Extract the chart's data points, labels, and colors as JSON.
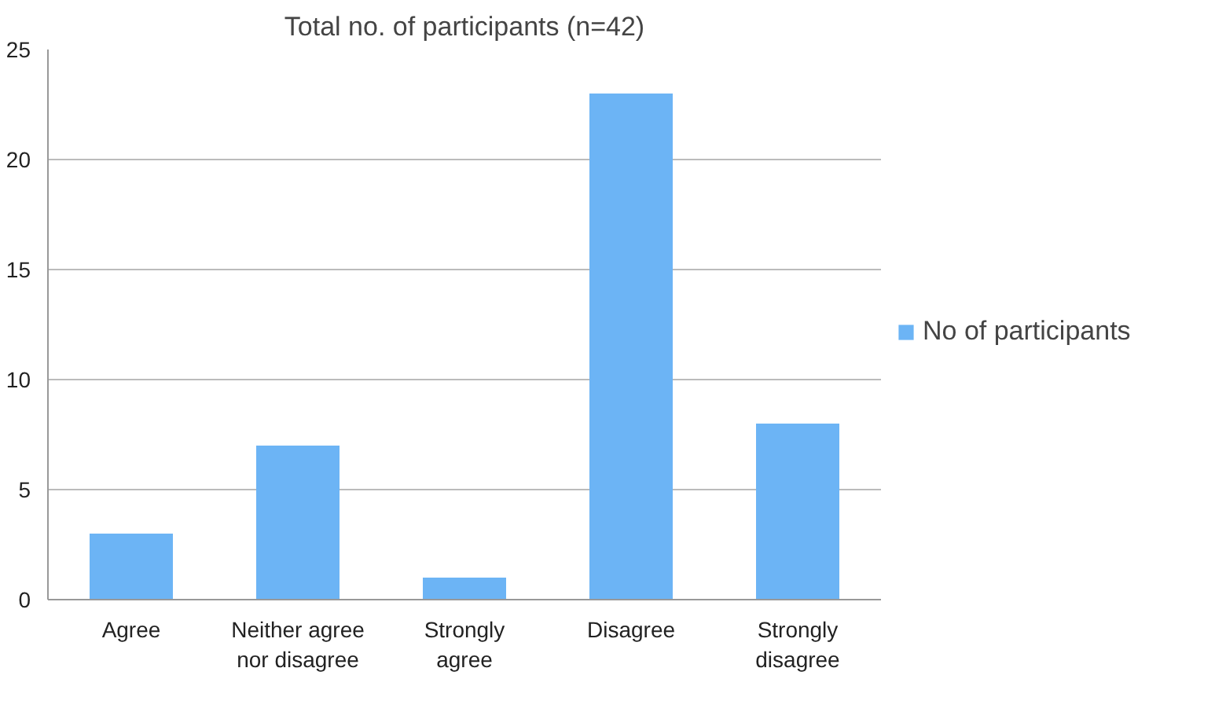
{
  "chart_data": {
    "type": "bar",
    "title": "Total no. of participants (n=42)",
    "categories": [
      "Agree",
      "Neither agree nor disagree",
      "Strongly agree",
      "Disagree",
      "Strongly disagree"
    ],
    "series": [
      {
        "name": "No of participants",
        "color": "#6cb4f5",
        "values": [
          3,
          7,
          1,
          23,
          8
        ]
      }
    ],
    "ylim": [
      0,
      25
    ],
    "yticks": [
      0,
      5,
      10,
      15,
      20,
      25
    ],
    "grid": "y",
    "legend": "right"
  }
}
